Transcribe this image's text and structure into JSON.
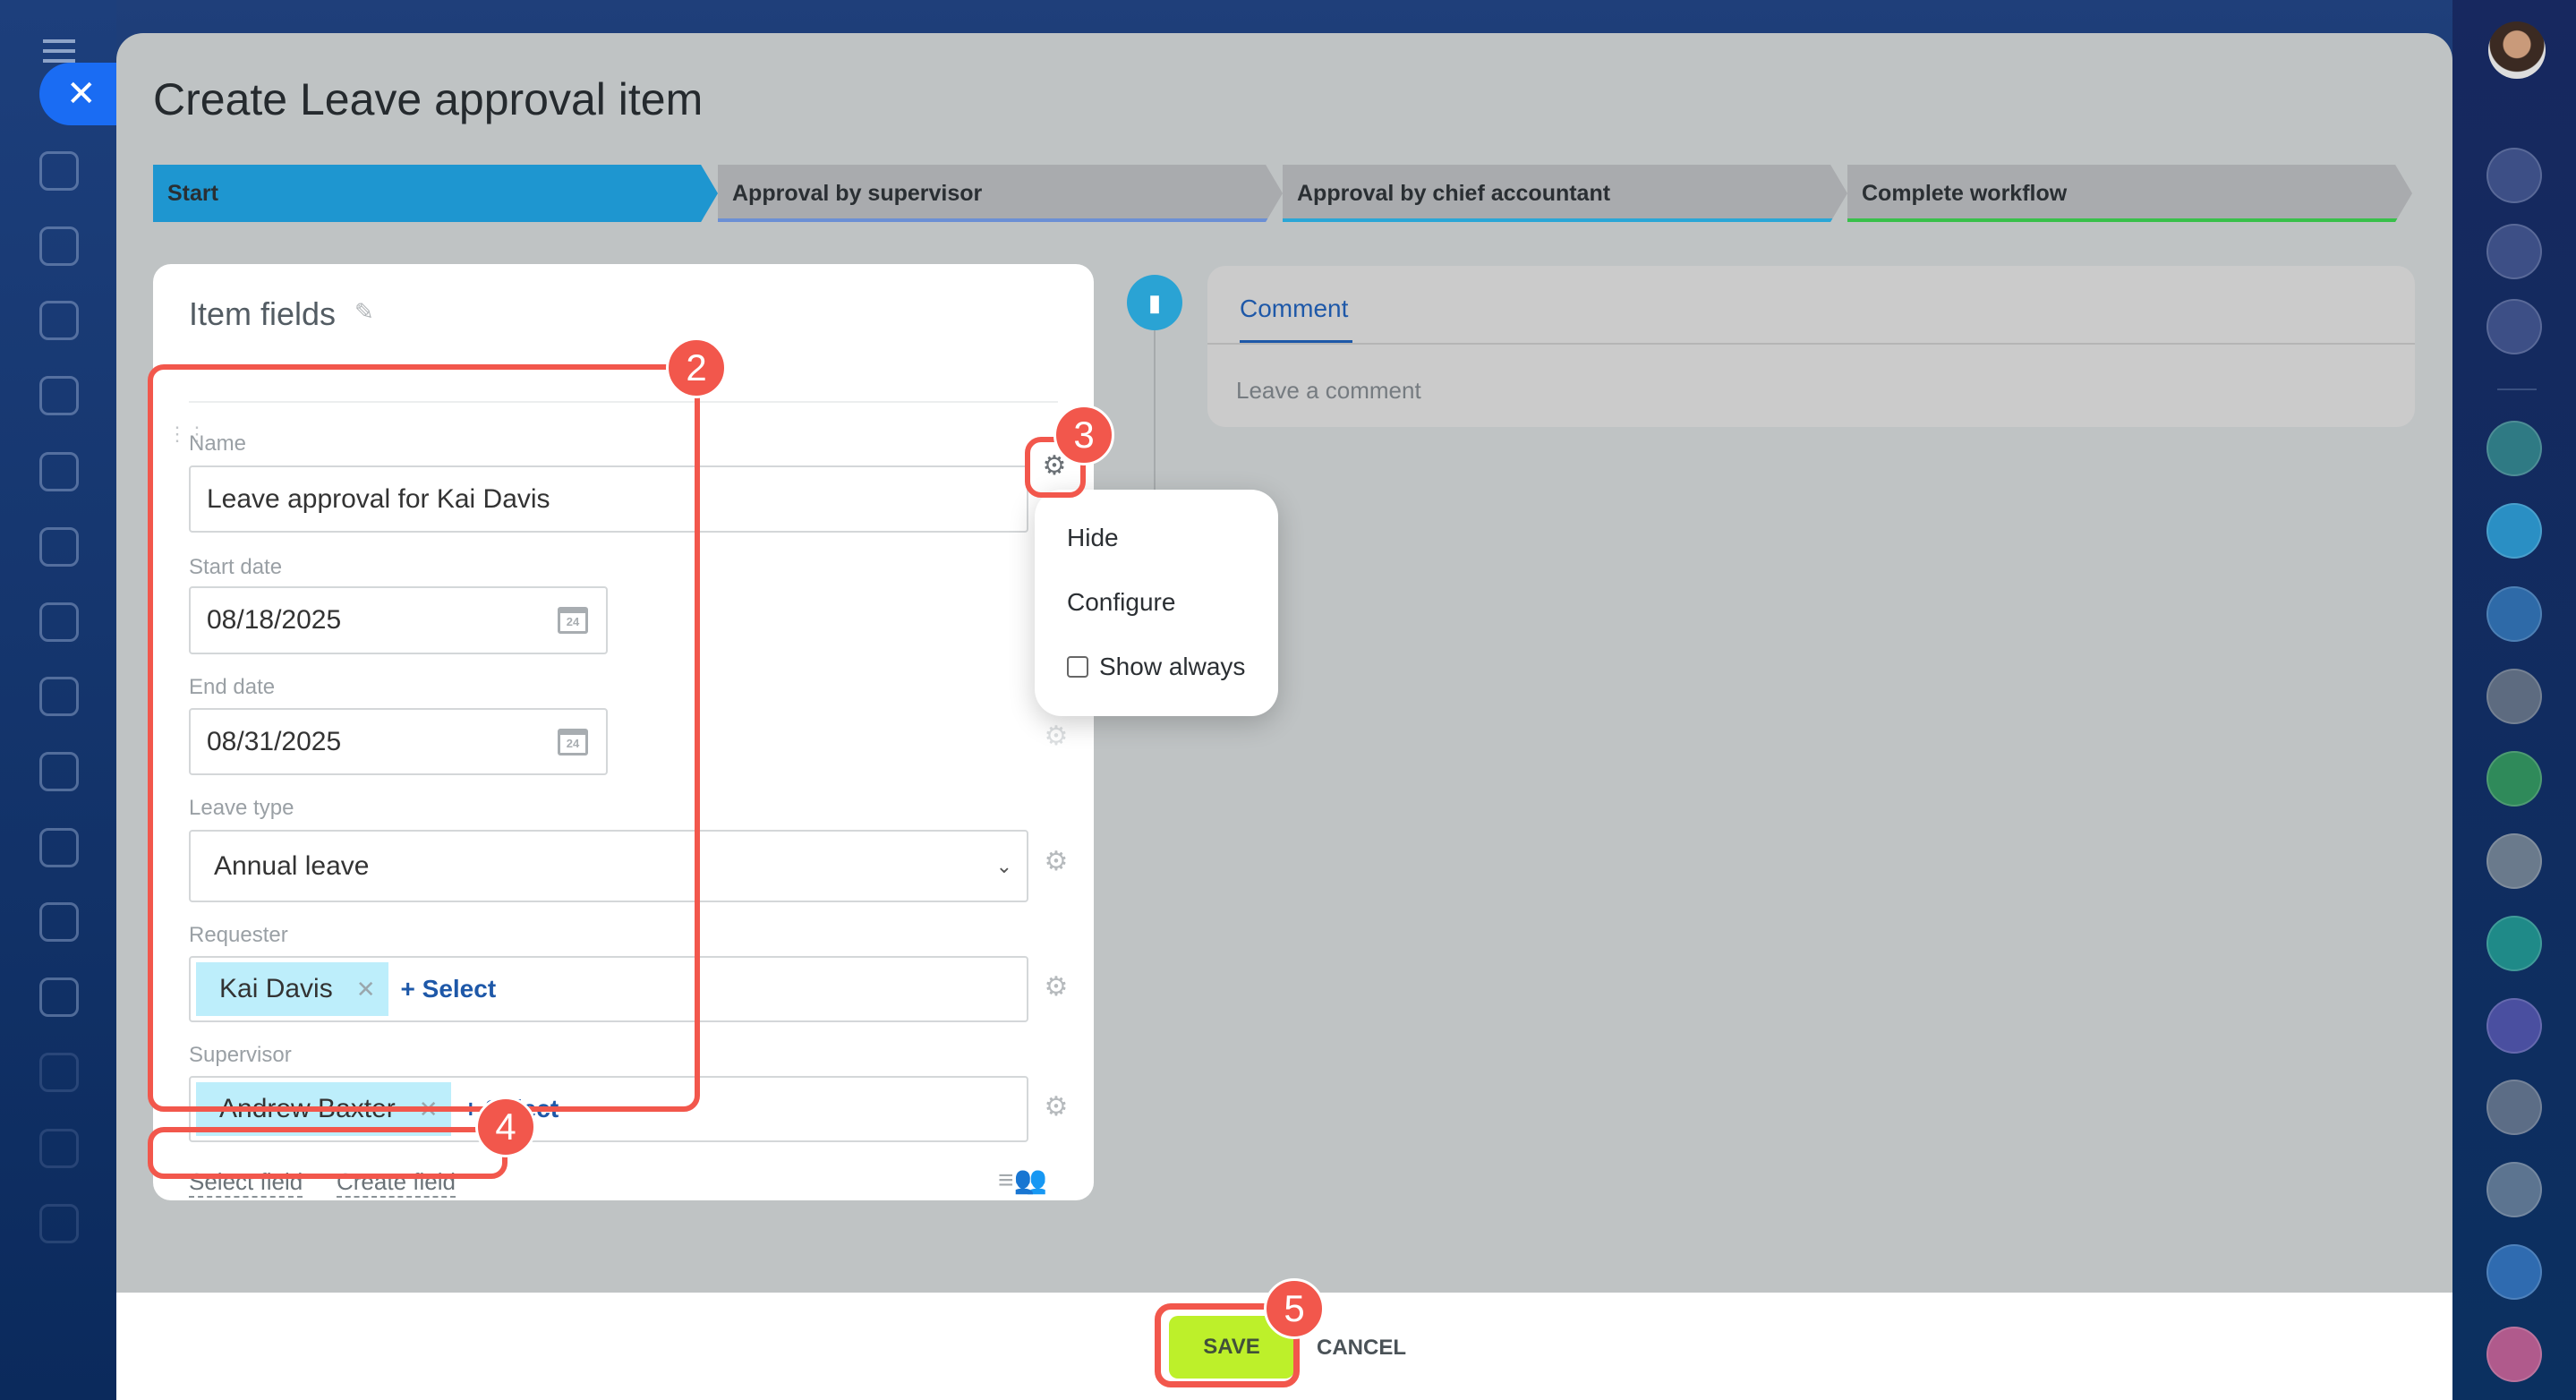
{
  "sidebar_left": {
    "close_icon": "close-icon",
    "menu_icon": "hamburger-icon",
    "icons": [
      "feed-icon",
      "chat-icon",
      "tasks-icon",
      "sites-icon",
      "calendar-icon",
      "docs-icon",
      "presentation-icon",
      "drive-icon",
      "mail-icon",
      "contacts-icon",
      "checklist-icon",
      "filter-icon",
      "schedule-icon",
      "store-icon",
      "target-icon"
    ]
  },
  "sidebar_right": {
    "icons": [
      {
        "name": "bell-icon",
        "color": "#3d4f86"
      },
      {
        "name": "target-icon",
        "color": "#3d4f86"
      },
      {
        "name": "search-chat-icon",
        "color": "#3d4f86"
      },
      {
        "name": "group-chat",
        "color": "#2f7a84"
      },
      {
        "name": "chat-bot",
        "color": "#2a8fc4"
      },
      {
        "name": "task-chat",
        "color": "#2e6aa8"
      },
      {
        "name": "user-avatar",
        "color": "#5d6b80"
      },
      {
        "name": "task-chat-green",
        "color": "#2f8a5a"
      },
      {
        "name": "user-avatar-2",
        "color": "#6a7a8c"
      },
      {
        "name": "task-chat-teal",
        "color": "#1f8a88"
      },
      {
        "name": "task-chat-purple",
        "color": "#4a4fa0"
      },
      {
        "name": "group-avatar",
        "color": "#5c6d86"
      },
      {
        "name": "group-avatar-2",
        "color": "#5c7490"
      },
      {
        "name": "mail-chat",
        "color": "#2f6bb0"
      },
      {
        "name": "group-chat-pink",
        "color": "#b05a8c"
      }
    ]
  },
  "modal": {
    "title": "Create Leave approval item"
  },
  "stages": [
    {
      "label": "Start",
      "color": "#1e96d0",
      "underline": "#1e96d0"
    },
    {
      "label": "Approval by supervisor",
      "color": "#a9abae",
      "underline": "#6b8fd4"
    },
    {
      "label": "Approval by chief accountant",
      "color": "#a9abae",
      "underline": "#2aa6d6"
    },
    {
      "label": "Complete workflow",
      "color": "#a9abae",
      "underline": "#38c04a"
    }
  ],
  "card": {
    "title": "Item fields",
    "fields": {
      "name": {
        "label": "Name",
        "value": "Leave approval for Kai Davis"
      },
      "start_date": {
        "label": "Start date",
        "value": "08/18/2025"
      },
      "end_date": {
        "label": "End date",
        "value": "08/31/2025"
      },
      "leave_type": {
        "label": "Leave type",
        "value": "Annual leave"
      },
      "requester": {
        "label": "Requester",
        "value": "Kai Davis",
        "select": "+ Select"
      },
      "supervisor": {
        "label": "Supervisor",
        "value": "Andrew Baxter",
        "select": "+ Select"
      }
    },
    "calendar_day": "24",
    "select_field": "Select field",
    "create_field": "Create field"
  },
  "gear_menu": {
    "hide": "Hide",
    "configure": "Configure",
    "show_always": "Show always",
    "show_always_checked": false
  },
  "comment": {
    "tab": "Comment",
    "placeholder": "Leave a comment"
  },
  "footer": {
    "save": "SAVE",
    "cancel": "CANCEL"
  },
  "annotations": [
    "2",
    "3",
    "4",
    "5"
  ]
}
